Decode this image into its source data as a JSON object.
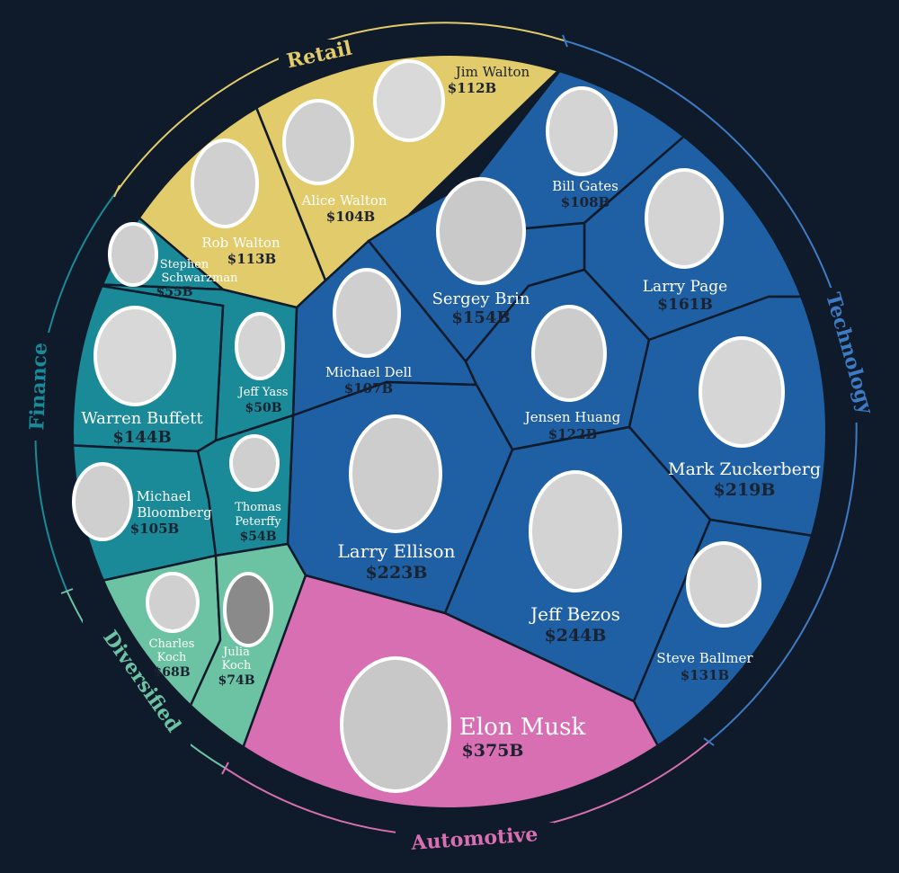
{
  "chart_data": {
    "type": "voronoi-treemap",
    "colors": {
      "background": "#0f1a2a",
      "Retail": "#e2cb6a",
      "Technology": "#1f5fa3",
      "Finance": "#1a8a98",
      "Diversified": "#6cc3a3",
      "Automotive": "#d96fb3"
    },
    "sectors": [
      {
        "name": "Retail"
      },
      {
        "name": "Technology"
      },
      {
        "name": "Finance"
      },
      {
        "name": "Diversified"
      },
      {
        "name": "Automotive"
      }
    ],
    "people": [
      {
        "name": "Jim Walton",
        "value": "$112B",
        "billions": 112,
        "sector": "Retail"
      },
      {
        "name": "Alice Walton",
        "value": "$104B",
        "billions": 104,
        "sector": "Retail"
      },
      {
        "name": "Rob Walton",
        "value": "$113B",
        "billions": 113,
        "sector": "Retail"
      },
      {
        "name": "Bill Gates",
        "value": "$108B",
        "billions": 108,
        "sector": "Technology"
      },
      {
        "name": "Sergey Brin",
        "value": "$154B",
        "billions": 154,
        "sector": "Technology"
      },
      {
        "name": "Larry Page",
        "value": "$161B",
        "billions": 161,
        "sector": "Technology"
      },
      {
        "name": "Michael Dell",
        "value": "$107B",
        "billions": 107,
        "sector": "Technology"
      },
      {
        "name": "Jensen Huang",
        "value": "$122B",
        "billions": 122,
        "sector": "Technology"
      },
      {
        "name": "Mark Zuckerberg",
        "value": "$219B",
        "billions": 219,
        "sector": "Technology"
      },
      {
        "name": "Larry Ellison",
        "value": "$223B",
        "billions": 223,
        "sector": "Technology"
      },
      {
        "name": "Jeff Bezos",
        "value": "$244B",
        "billions": 244,
        "sector": "Technology"
      },
      {
        "name": "Steve Ballmer",
        "value": "$131B",
        "billions": 131,
        "sector": "Technology"
      },
      {
        "name": "Stephen Schwarzman",
        "value": "$55B",
        "billions": 55,
        "sector": "Finance"
      },
      {
        "name": "Jeff Yass",
        "value": "$50B",
        "billions": 50,
        "sector": "Finance"
      },
      {
        "name": "Warren Buffett",
        "value": "$144B",
        "billions": 144,
        "sector": "Finance"
      },
      {
        "name": "Michael Bloomberg",
        "value": "$105B",
        "billions": 105,
        "sector": "Finance"
      },
      {
        "name": "Thomas Peterffy",
        "value": "$54B",
        "billions": 54,
        "sector": "Finance"
      },
      {
        "name": "Charles Koch",
        "value": "$68B",
        "billions": 68,
        "sector": "Diversified"
      },
      {
        "name": "Julia Koch",
        "value": "$74B",
        "billions": 74,
        "sector": "Diversified"
      },
      {
        "name": "Elon Musk",
        "value": "$375B",
        "billions": 375,
        "sector": "Automotive"
      }
    ]
  }
}
